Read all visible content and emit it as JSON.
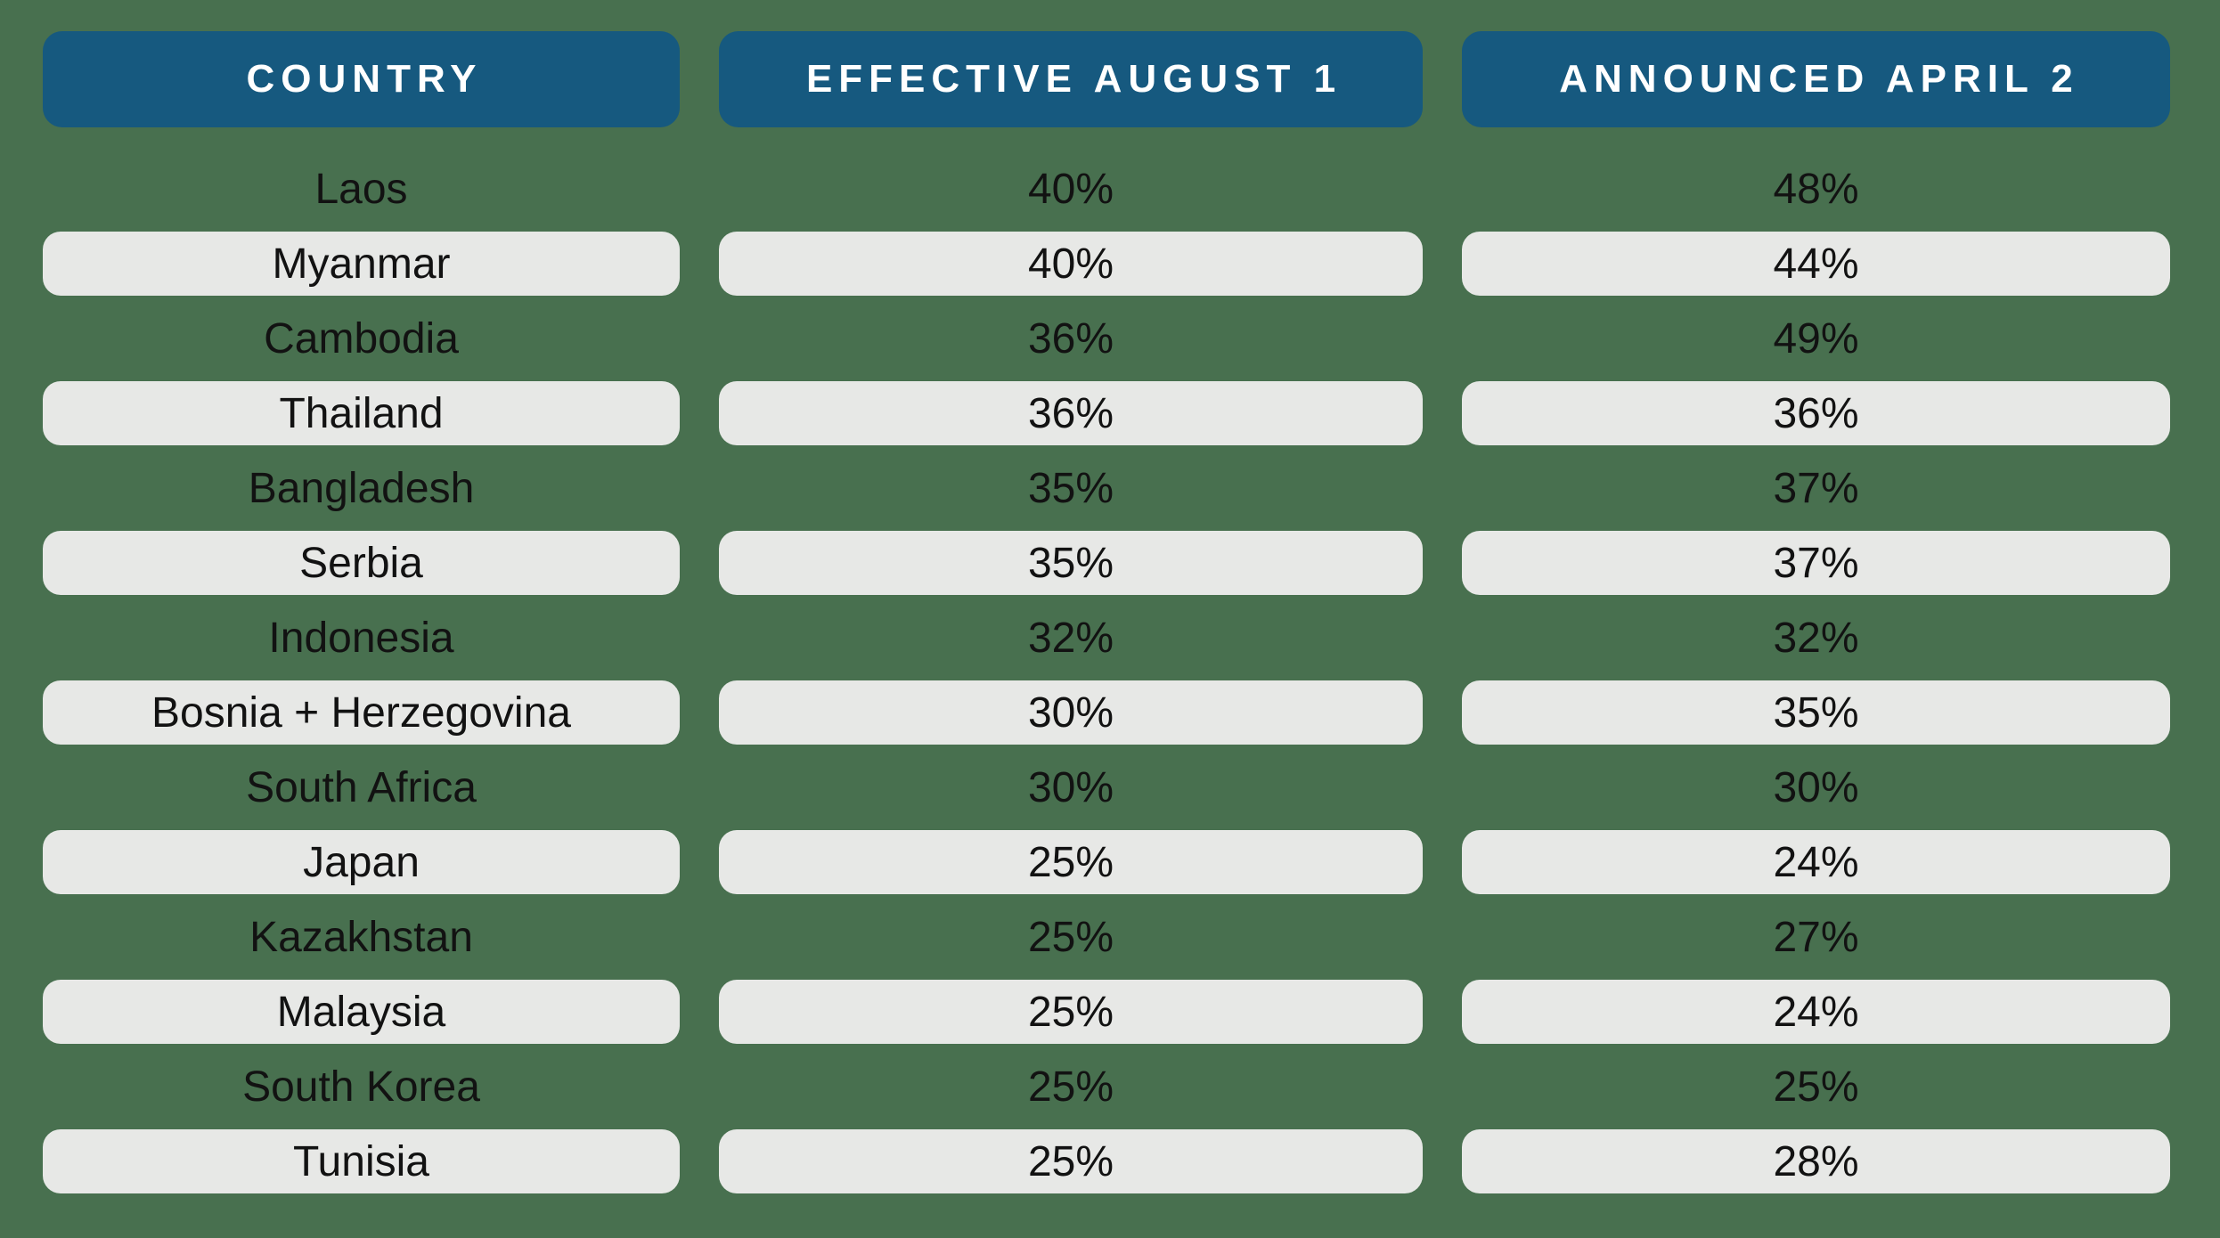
{
  "colors": {
    "background": "#48704F",
    "header_bg": "#16597F",
    "header_text": "#FFFFFF",
    "row_pill_bg": "#E7E8E6",
    "data_text": "#121212"
  },
  "chart_data": {
    "type": "table",
    "columns": [
      "COUNTRY",
      "EFFECTIVE AUGUST 1",
      "ANNOUNCED APRIL 2"
    ],
    "rows": [
      [
        "Laos",
        "40%",
        "48%"
      ],
      [
        "Myanmar",
        "40%",
        "44%"
      ],
      [
        "Cambodia",
        "36%",
        "49%"
      ],
      [
        "Thailand",
        "36%",
        "36%"
      ],
      [
        "Bangladesh",
        "35%",
        "37%"
      ],
      [
        "Serbia",
        "35%",
        "37%"
      ],
      [
        "Indonesia",
        "32%",
        "32%"
      ],
      [
        "Bosnia + Herzegovina",
        "30%",
        "35%"
      ],
      [
        "South Africa",
        "30%",
        "30%"
      ],
      [
        "Japan",
        "25%",
        "24%"
      ],
      [
        "Kazakhstan",
        "25%",
        "27%"
      ],
      [
        "Malaysia",
        "25%",
        "24%"
      ],
      [
        "South Korea",
        "25%",
        "25%"
      ],
      [
        "Tunisia",
        "25%",
        "28%"
      ]
    ],
    "layout_hints": {
      "shaded_rows": "every second row starting with row 2",
      "alignment": "center"
    }
  }
}
